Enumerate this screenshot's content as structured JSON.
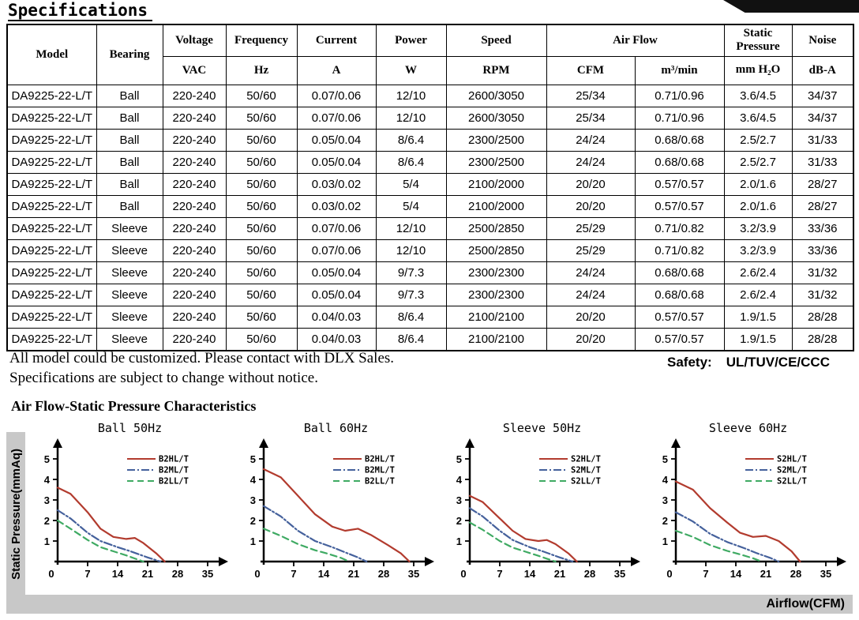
{
  "page": {
    "title": "Specifications",
    "footer_line1": "All model could be customized. Please contact with DLX Sales.",
    "footer_line2": "Specifications are subject to change without notice.",
    "safety_label": "Safety:",
    "safety_value": "UL/TUV/CE/CCC",
    "section_title": "Air Flow-Static Pressure Characteristics",
    "y_axis_label": "Static Pressure(mmAq)",
    "x_axis_label": "Airflow(CFM)"
  },
  "table": {
    "header": {
      "model": "Model",
      "bearing": "Bearing",
      "voltage": "Voltage",
      "frequency": "Frequency",
      "current": "Current",
      "power": "Power",
      "speed": "Speed",
      "airflow": "Air Flow",
      "static_pressure": "Static Pressure",
      "noise": "Noise",
      "vac": "VAC",
      "hz": "Hz",
      "a": "A",
      "w": "W",
      "rpm": "RPM",
      "cfm": "CFM",
      "m3min": "m³/min",
      "mmh2o": "mm H₂O",
      "dba": "dB-A"
    },
    "col_keys": [
      "model",
      "bearing",
      "voltage",
      "frequency",
      "current",
      "power",
      "speed",
      "cfm",
      "m3min",
      "mmh2o",
      "dba"
    ],
    "rows": [
      [
        "DA9225-22-L/T",
        "Ball",
        "220-240",
        "50/60",
        "0.07/0.06",
        "12/10",
        "2600/3050",
        "25/34",
        "0.71/0.96",
        "3.6/4.5",
        "34/37"
      ],
      [
        "DA9225-22-L/T",
        "Ball",
        "220-240",
        "50/60",
        "0.07/0.06",
        "12/10",
        "2600/3050",
        "25/34",
        "0.71/0.96",
        "3.6/4.5",
        "34/37"
      ],
      [
        "DA9225-22-L/T",
        "Ball",
        "220-240",
        "50/60",
        "0.05/0.04",
        "8/6.4",
        "2300/2500",
        "24/24",
        "0.68/0.68",
        "2.5/2.7",
        "31/33"
      ],
      [
        "DA9225-22-L/T",
        "Ball",
        "220-240",
        "50/60",
        "0.05/0.04",
        "8/6.4",
        "2300/2500",
        "24/24",
        "0.68/0.68",
        "2.5/2.7",
        "31/33"
      ],
      [
        "DA9225-22-L/T",
        "Ball",
        "220-240",
        "50/60",
        "0.03/0.02",
        "5/4",
        "2100/2000",
        "20/20",
        "0.57/0.57",
        "2.0/1.6",
        "28/27"
      ],
      [
        "DA9225-22-L/T",
        "Ball",
        "220-240",
        "50/60",
        "0.03/0.02",
        "5/4",
        "2100/2000",
        "20/20",
        "0.57/0.57",
        "2.0/1.6",
        "28/27"
      ],
      [
        "DA9225-22-L/T",
        "Sleeve",
        "220-240",
        "50/60",
        "0.07/0.06",
        "12/10",
        "2500/2850",
        "25/29",
        "0.71/0.82",
        "3.2/3.9",
        "33/36"
      ],
      [
        "DA9225-22-L/T",
        "Sleeve",
        "220-240",
        "50/60",
        "0.07/0.06",
        "12/10",
        "2500/2850",
        "25/29",
        "0.71/0.82",
        "3.2/3.9",
        "33/36"
      ],
      [
        "DA9225-22-L/T",
        "Sleeve",
        "220-240",
        "50/60",
        "0.05/0.04",
        "9/7.3",
        "2300/2300",
        "24/24",
        "0.68/0.68",
        "2.6/2.4",
        "31/32"
      ],
      [
        "DA9225-22-L/T",
        "Sleeve",
        "220-240",
        "50/60",
        "0.05/0.04",
        "9/7.3",
        "2300/2300",
        "24/24",
        "0.68/0.68",
        "2.6/2.4",
        "31/32"
      ],
      [
        "DA9225-22-L/T",
        "Sleeve",
        "220-240",
        "50/60",
        "0.04/0.03",
        "8/6.4",
        "2100/2100",
        "20/20",
        "0.57/0.57",
        "1.9/1.5",
        "28/28"
      ],
      [
        "DA9225-22-L/T",
        "Sleeve",
        "220-240",
        "50/60",
        "0.04/0.03",
        "8/6.4",
        "2100/2100",
        "20/20",
        "0.57/0.57",
        "1.9/1.5",
        "28/28"
      ]
    ]
  },
  "chart_data": [
    {
      "type": "line",
      "title": "Ball 50Hz",
      "xlabel": "Airflow(CFM)",
      "ylabel": "Static Pressure(mmAq)",
      "xlim": [
        0,
        35
      ],
      "ylim": [
        0,
        5
      ],
      "x_ticks": [
        0,
        7,
        14,
        21,
        28,
        35
      ],
      "y_ticks": [
        0,
        1,
        2,
        3,
        4,
        5
      ],
      "grid": false,
      "legend_position": "top-right",
      "series": [
        {
          "name": "B2HL/T",
          "color": "#b23b2e",
          "style": "solid",
          "points": [
            [
              0,
              3.6
            ],
            [
              3,
              3.3
            ],
            [
              7,
              2.4
            ],
            [
              10,
              1.6
            ],
            [
              13,
              1.2
            ],
            [
              16,
              1.1
            ],
            [
              18,
              1.15
            ],
            [
              20,
              0.9
            ],
            [
              23,
              0.4
            ],
            [
              25,
              0
            ]
          ]
        },
        {
          "name": "B2ML/T",
          "color": "#45619c",
          "style": "dashdot",
          "points": [
            [
              0,
              2.5
            ],
            [
              3,
              2.1
            ],
            [
              7,
              1.4
            ],
            [
              10,
              1.0
            ],
            [
              14,
              0.7
            ],
            [
              17,
              0.5
            ],
            [
              19,
              0.35
            ],
            [
              21,
              0.2
            ],
            [
              24,
              0
            ]
          ]
        },
        {
          "name": "B2LL/T",
          "color": "#3faa63",
          "style": "dashed",
          "points": [
            [
              0,
              2.0
            ],
            [
              3,
              1.6
            ],
            [
              7,
              1.05
            ],
            [
              10,
              0.7
            ],
            [
              13,
              0.5
            ],
            [
              16,
              0.3
            ],
            [
              18,
              0.15
            ],
            [
              20,
              0
            ]
          ]
        }
      ]
    },
    {
      "type": "line",
      "title": "Ball 60Hz",
      "xlabel": "Airflow(CFM)",
      "ylabel": "Static Pressure(mmAq)",
      "xlim": [
        0,
        35
      ],
      "ylim": [
        0,
        5
      ],
      "x_ticks": [
        0,
        7,
        14,
        21,
        28,
        35
      ],
      "y_ticks": [
        0,
        1,
        2,
        3,
        4,
        5
      ],
      "grid": false,
      "legend_position": "top-right",
      "series": [
        {
          "name": "B2HL/T",
          "color": "#b23b2e",
          "style": "solid",
          "points": [
            [
              0,
              4.5
            ],
            [
              4,
              4.1
            ],
            [
              8,
              3.2
            ],
            [
              12,
              2.3
            ],
            [
              16,
              1.7
            ],
            [
              19,
              1.5
            ],
            [
              22,
              1.6
            ],
            [
              25,
              1.3
            ],
            [
              29,
              0.8
            ],
            [
              32,
              0.4
            ],
            [
              34,
              0
            ]
          ]
        },
        {
          "name": "B2ML/T",
          "color": "#45619c",
          "style": "dashdot",
          "points": [
            [
              0,
              2.7
            ],
            [
              4,
              2.2
            ],
            [
              8,
              1.5
            ],
            [
              12,
              1.0
            ],
            [
              16,
              0.7
            ],
            [
              19,
              0.45
            ],
            [
              22,
              0.2
            ],
            [
              24,
              0
            ]
          ]
        },
        {
          "name": "B2LL/T",
          "color": "#3faa63",
          "style": "dashed",
          "points": [
            [
              0,
              1.6
            ],
            [
              4,
              1.25
            ],
            [
              8,
              0.85
            ],
            [
              12,
              0.55
            ],
            [
              15,
              0.38
            ],
            [
              18,
              0.18
            ],
            [
              20,
              0
            ]
          ]
        }
      ]
    },
    {
      "type": "line",
      "title": "Sleeve 50Hz",
      "xlabel": "Airflow(CFM)",
      "ylabel": "Static Pressure(mmAq)",
      "xlim": [
        0,
        35
      ],
      "ylim": [
        0,
        5
      ],
      "x_ticks": [
        0,
        7,
        14,
        21,
        28,
        35
      ],
      "y_ticks": [
        0,
        1,
        2,
        3,
        4,
        5
      ],
      "grid": false,
      "legend_position": "top-right",
      "series": [
        {
          "name": "S2HL/T",
          "color": "#b23b2e",
          "style": "solid",
          "points": [
            [
              0,
              3.2
            ],
            [
              3,
              2.9
            ],
            [
              7,
              2.1
            ],
            [
              10,
              1.5
            ],
            [
              13,
              1.1
            ],
            [
              16,
              1.0
            ],
            [
              18,
              1.05
            ],
            [
              20,
              0.85
            ],
            [
              23,
              0.4
            ],
            [
              25,
              0
            ]
          ]
        },
        {
          "name": "S2ML/T",
          "color": "#45619c",
          "style": "dashdot",
          "points": [
            [
              0,
              2.6
            ],
            [
              3,
              2.2
            ],
            [
              7,
              1.5
            ],
            [
              10,
              1.05
            ],
            [
              14,
              0.7
            ],
            [
              17,
              0.5
            ],
            [
              19,
              0.35
            ],
            [
              21,
              0.2
            ],
            [
              24,
              0
            ]
          ]
        },
        {
          "name": "S2LL/T",
          "color": "#3faa63",
          "style": "dashed",
          "points": [
            [
              0,
              1.9
            ],
            [
              3,
              1.55
            ],
            [
              7,
              1.0
            ],
            [
              10,
              0.68
            ],
            [
              13,
              0.48
            ],
            [
              16,
              0.28
            ],
            [
              18,
              0.14
            ],
            [
              20,
              0
            ]
          ]
        }
      ]
    },
    {
      "type": "line",
      "title": "Sleeve 60Hz",
      "xlabel": "Airflow(CFM)",
      "ylabel": "Static Pressure(mmAq)",
      "xlim": [
        0,
        35
      ],
      "ylim": [
        0,
        5
      ],
      "x_ticks": [
        0,
        7,
        14,
        21,
        28,
        35
      ],
      "y_ticks": [
        0,
        1,
        2,
        3,
        4,
        5
      ],
      "grid": false,
      "legend_position": "top-right",
      "series": [
        {
          "name": "S2HL/T",
          "color": "#b23b2e",
          "style": "solid",
          "points": [
            [
              0,
              3.9
            ],
            [
              4,
              3.5
            ],
            [
              8,
              2.6
            ],
            [
              12,
              1.9
            ],
            [
              15,
              1.4
            ],
            [
              18,
              1.2
            ],
            [
              21,
              1.25
            ],
            [
              24,
              1.0
            ],
            [
              27,
              0.5
            ],
            [
              29,
              0
            ]
          ]
        },
        {
          "name": "S2ML/T",
          "color": "#45619c",
          "style": "dashdot",
          "points": [
            [
              0,
              2.4
            ],
            [
              4,
              1.95
            ],
            [
              8,
              1.35
            ],
            [
              12,
              0.95
            ],
            [
              16,
              0.65
            ],
            [
              19,
              0.4
            ],
            [
              22,
              0.18
            ],
            [
              24,
              0
            ]
          ]
        },
        {
          "name": "S2LL/T",
          "color": "#3faa63",
          "style": "dashed",
          "points": [
            [
              0,
              1.5
            ],
            [
              4,
              1.2
            ],
            [
              8,
              0.8
            ],
            [
              12,
              0.52
            ],
            [
              15,
              0.35
            ],
            [
              18,
              0.16
            ],
            [
              20,
              0
            ]
          ]
        }
      ]
    }
  ]
}
